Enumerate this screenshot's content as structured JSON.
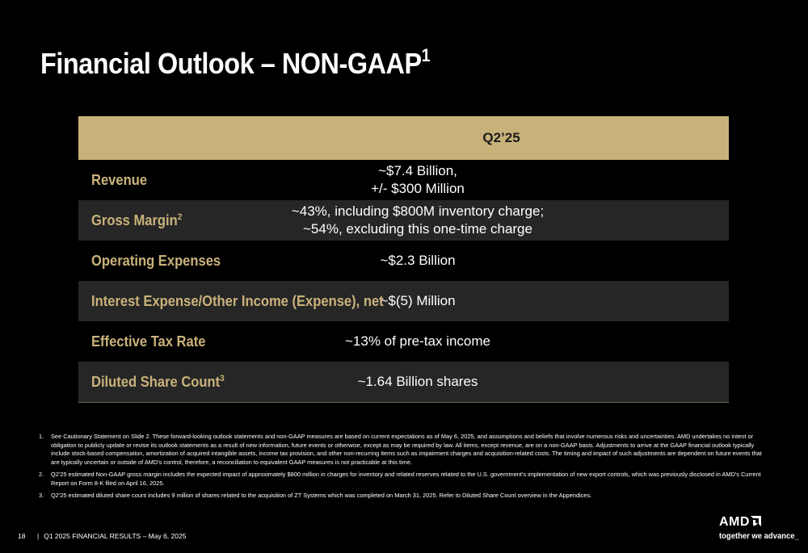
{
  "title": {
    "text": "Financial Outlook – NON-GAAP",
    "sup": "1"
  },
  "table": {
    "header": "Q2’25",
    "rows": [
      {
        "label": "Revenue",
        "sup": "",
        "value_lines": [
          "~$7.4 Billion,",
          "+/- $300 Million"
        ]
      },
      {
        "label": "Gross Margin",
        "sup": "2",
        "value_lines": [
          "~43%, including $800M inventory charge;",
          "~54%, excluding this one-time charge"
        ]
      },
      {
        "label": "Operating Expenses",
        "sup": "",
        "value_lines": [
          "~$2.3 Billion",
          ""
        ]
      },
      {
        "label": "Interest Expense/Other Income (Expense), net",
        "sup": "",
        "value_lines": [
          "~$(5) Million",
          ""
        ]
      },
      {
        "label": "Effective Tax Rate",
        "sup": "",
        "value_lines": [
          "~13% of pre-tax income",
          ""
        ]
      },
      {
        "label": "Diluted Share Count",
        "sup": "3",
        "value_lines": [
          "~1.64 Billion shares",
          ""
        ]
      }
    ]
  },
  "footnotes": [
    {
      "num": "1.",
      "text": "See Cautionary Statement on Slide 2. These forward-looking outlook statements and non-GAAP measures are based on current expectations as of May 6, 2025, and assumptions and beliefs that involve numerous risks and uncertainties. AMD undertakes no intent or obligation to publicly update or revise its outlook statements as a result of new information, future events or otherwise, except as may be required by law. All items, except revenue, are on a non-GAAP basis. Adjustments to arrive at the GAAP financial outlook typically include stock-based compensation, amortization of acquired intangible assets, income tax provision, and other non-recurring items such as impairment charges and acquisition-related costs. The timing and impact of such adjustments are dependent on future events that are typically uncertain or outside of AMD's control, therefore, a reconciliation to equivalent GAAP measures is not practicable at this time."
    },
    {
      "num": "2.",
      "text": "Q2'25 estimated Non-GAAP gross margin includes the expected impact of approximately $800 million in charges for inventory and related reserves related to the U.S. government's implementation of new export controls, which was previously disclosed in AMD's Current Report on Form 8-K filed on April 16, 2025."
    },
    {
      "num": "3.",
      "text": "Q2'25 estimated diluted share count includes 9 million of shares related to the acquisition of ZT Systems which was completed on March 31, 2025. Refer to Diluted Share Count overview in the Appendices."
    }
  ],
  "footer": {
    "page": "18",
    "separator": "|",
    "text": "Q1 2025 FINANCIAL RESULTS – May 6, 2025"
  },
  "logo": {
    "text": "AMD",
    "icon": "amd-arrow-icon",
    "tagline": "together we advance_"
  },
  "colors": {
    "background": "#000000",
    "accent_gold": "#c9b27a",
    "alt_row": "#262626",
    "text": "#ffffff"
  }
}
